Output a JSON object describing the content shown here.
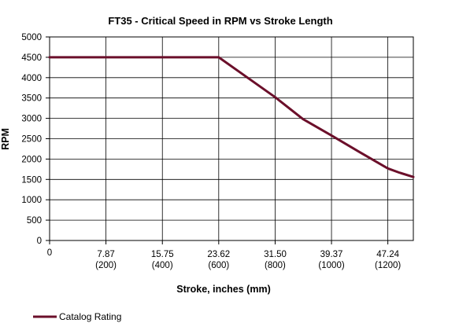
{
  "chart_data": {
    "type": "line",
    "title": "FT35 - Critical Speed in RPM vs Stroke Length",
    "xlabel": "Stroke, inches (mm)",
    "ylabel": "RPM",
    "xlim": [
      0,
      50.8
    ],
    "ylim": [
      0,
      5000
    ],
    "yticks": [
      0,
      500,
      1000,
      1500,
      2000,
      2500,
      3000,
      3500,
      4000,
      4500,
      5000
    ],
    "xticks": [
      {
        "value": 0,
        "label": "0",
        "sublabel": ""
      },
      {
        "value": 7.87,
        "label": "7.87",
        "sublabel": "(200)"
      },
      {
        "value": 15.75,
        "label": "15.75",
        "sublabel": "(400)"
      },
      {
        "value": 23.62,
        "label": "23.62",
        "sublabel": "(600)"
      },
      {
        "value": 31.5,
        "label": "31.50",
        "sublabel": "(800)"
      },
      {
        "value": 39.37,
        "label": "39.37",
        "sublabel": "(1000)"
      },
      {
        "value": 47.24,
        "label": "47.24",
        "sublabel": "(1200)"
      }
    ],
    "grid": true,
    "legend_position": "bottom-left",
    "series": [
      {
        "name": "Catalog Rating",
        "color": "#6b0f2a",
        "x": [
          0,
          23.62,
          27.0,
          31.5,
          35.4,
          39.37,
          43.3,
          47.24,
          48.8,
          50.8
        ],
        "y": [
          4500,
          4500,
          4080,
          3520,
          2980,
          2580,
          2170,
          1770,
          1670,
          1560
        ]
      }
    ]
  }
}
